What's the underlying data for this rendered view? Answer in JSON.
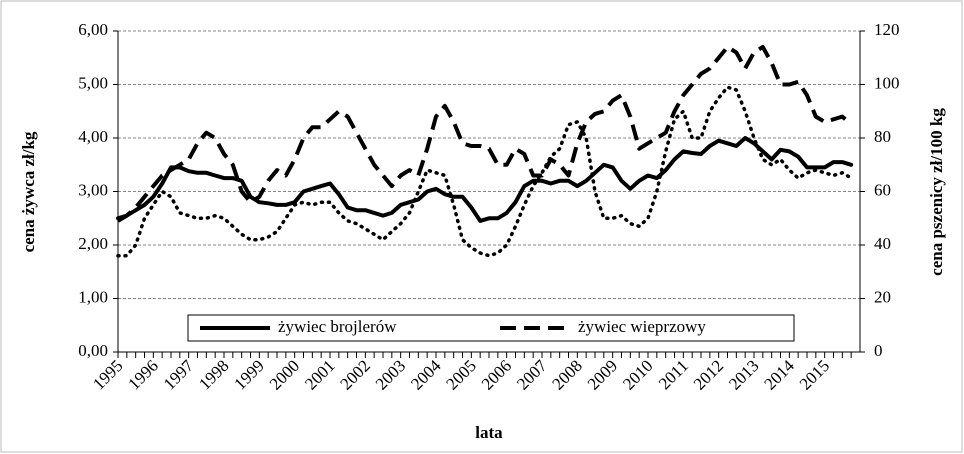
{
  "chart_data": {
    "type": "line",
    "x_label": "lata",
    "y_label": "cena żywca zł/kg",
    "y2_label": "cena pszenicy zł/100 kg",
    "categories": [
      "1995",
      null,
      null,
      null,
      "1996",
      null,
      null,
      null,
      "1997",
      null,
      null,
      null,
      "1998",
      null,
      null,
      null,
      "1999",
      null,
      null,
      null,
      "2000",
      null,
      null,
      null,
      "2001",
      null,
      null,
      null,
      "2002",
      null,
      null,
      null,
      "2003",
      null,
      null,
      null,
      "2004",
      null,
      null,
      null,
      "2005",
      null,
      null,
      null,
      "2006",
      null,
      null,
      null,
      "2007",
      null,
      null,
      null,
      "2008",
      null,
      null,
      null,
      "2009",
      null,
      null,
      null,
      "2010",
      null,
      null,
      null,
      "2011",
      null,
      null,
      null,
      "2012",
      null,
      null,
      null,
      "2013",
      null,
      null,
      null,
      "2014",
      null,
      null,
      null,
      "2015",
      null,
      null,
      null
    ],
    "series": [
      {
        "name": "żywiec brojlerów",
        "color": "#000000",
        "style": "solid",
        "values": [
          2.5,
          2.55,
          2.65,
          2.75,
          2.9,
          3.15,
          3.45,
          3.45,
          3.38,
          3.35,
          3.35,
          3.3,
          3.25,
          3.25,
          3.2,
          2.9,
          2.8,
          2.78,
          2.75,
          2.75,
          2.8,
          3.0,
          3.05,
          3.1,
          3.15,
          2.95,
          2.7,
          2.65,
          2.65,
          2.6,
          2.55,
          2.6,
          2.75,
          2.8,
          2.85,
          3.0,
          3.05,
          2.95,
          2.9,
          2.9,
          2.7,
          2.45,
          2.5,
          2.5,
          2.6,
          2.8,
          3.1,
          3.2,
          3.2,
          3.15,
          3.2,
          3.2,
          3.1,
          3.2,
          3.35,
          3.5,
          3.45,
          3.2,
          3.05,
          3.2,
          3.3,
          3.25,
          3.4,
          3.6,
          3.75,
          3.72,
          3.7,
          3.85,
          3.95,
          3.9,
          3.85,
          4.0,
          3.9,
          3.75,
          3.6,
          3.78,
          3.75,
          3.65,
          3.45,
          3.45,
          3.45,
          3.55,
          3.55,
          3.5
        ]
      },
      {
        "name": "żywiec wieprzowy",
        "color": "#000000",
        "style": "dashed",
        "values": [
          2.45,
          2.55,
          2.7,
          2.9,
          3.1,
          3.3,
          3.4,
          3.5,
          3.6,
          3.9,
          4.1,
          4.0,
          3.7,
          3.5,
          3.0,
          2.8,
          2.9,
          3.2,
          3.4,
          3.3,
          3.6,
          4.0,
          4.2,
          4.2,
          4.35,
          4.5,
          4.4,
          4.1,
          3.8,
          3.5,
          3.3,
          3.1,
          3.3,
          3.4,
          3.3,
          3.8,
          4.4,
          4.6,
          4.3,
          3.9,
          3.85,
          3.85,
          3.8,
          3.5,
          3.5,
          3.8,
          3.7,
          3.3,
          3.3,
          3.6,
          3.5,
          3.3,
          3.9,
          4.3,
          4.45,
          4.5,
          4.7,
          4.8,
          4.4,
          3.8,
          3.9,
          4.0,
          4.1,
          4.5,
          4.8,
          5.0,
          5.2,
          5.3,
          5.5,
          5.7,
          5.6,
          5.3,
          5.6,
          5.7,
          5.4,
          5.0,
          5.0,
          5.05,
          4.8,
          4.4,
          4.3,
          4.35,
          4.4,
          4.25
        ]
      },
      {
        "color": "#000000",
        "style": "dotted",
        "axis": "y2",
        "values": [
          36,
          36,
          40,
          50,
          55,
          60,
          58,
          52,
          51,
          50,
          50,
          51,
          50,
          47,
          44,
          42,
          42,
          43,
          45,
          50,
          55,
          56,
          55,
          56,
          56,
          52,
          49,
          48,
          46,
          44,
          42,
          45,
          48,
          52,
          60,
          68,
          67,
          66,
          55,
          42,
          39,
          37,
          36,
          37,
          40,
          47,
          55,
          62,
          67,
          73,
          76,
          85,
          86,
          80,
          60,
          50,
          50,
          51,
          48,
          47,
          50,
          60,
          75,
          87,
          90,
          80,
          80,
          90,
          95,
          99,
          98,
          90,
          80,
          72,
          70,
          72,
          68,
          65,
          67,
          68,
          67,
          66,
          67,
          65
        ]
      }
    ],
    "ylim": [
      0,
      6
    ],
    "yticks": [
      {
        "value": 0,
        "label": "0,00"
      },
      {
        "value": 1,
        "label": "1,00"
      },
      {
        "value": 2,
        "label": "2,00"
      },
      {
        "value": 3,
        "label": "3,00"
      },
      {
        "value": 4,
        "label": "4,00"
      },
      {
        "value": 5,
        "label": "5,00"
      },
      {
        "value": 6,
        "label": "6,00"
      }
    ],
    "y2lim": [
      0,
      120
    ],
    "y2ticks": [
      0,
      20,
      40,
      60,
      80,
      100,
      120
    ],
    "grid": true
  }
}
